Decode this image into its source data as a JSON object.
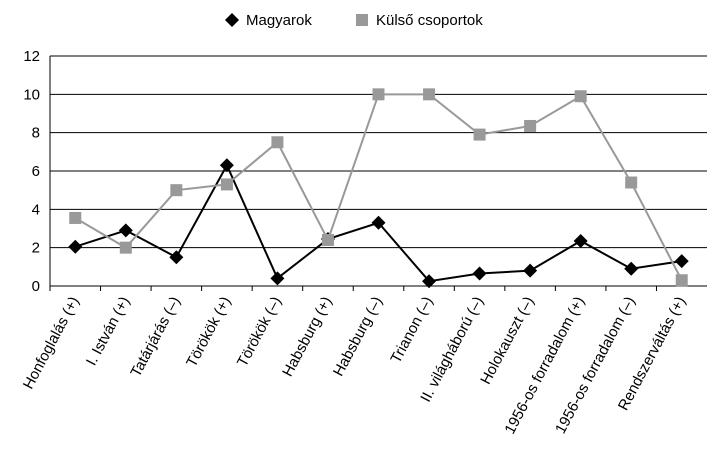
{
  "chart_data": {
    "type": "line",
    "categories": [
      "Honfoglalás (+)",
      "I. István (+)",
      "Tatárjárás (–)",
      "Törökök (+)",
      "Törökök (–)",
      "Habsburg (+)",
      "Habsburg (–)",
      "Trianon (–)",
      "II. világháború (–)",
      "Holokauszt (–)",
      "1956-os forradalom (+)",
      "1956-os forradalom (–)",
      "Rendszerváltás (+)"
    ],
    "series": [
      {
        "name": "Magyarok",
        "color": "#000000",
        "marker": "diamond",
        "values": [
          2.05,
          2.9,
          1.5,
          6.3,
          0.4,
          2.45,
          3.3,
          0.25,
          0.65,
          0.8,
          2.35,
          0.9,
          1.3
        ]
      },
      {
        "name": "Külső csoportok",
        "color": "#999999",
        "marker": "square",
        "values": [
          3.55,
          2.0,
          5.0,
          5.3,
          7.5,
          2.4,
          10.0,
          10.0,
          7.9,
          8.35,
          9.9,
          5.4,
          0.3
        ]
      }
    ],
    "ylim": [
      0,
      12
    ],
    "yticks": [
      0,
      2,
      4,
      6,
      8,
      10,
      12
    ],
    "grid": true,
    "legend": "top"
  }
}
